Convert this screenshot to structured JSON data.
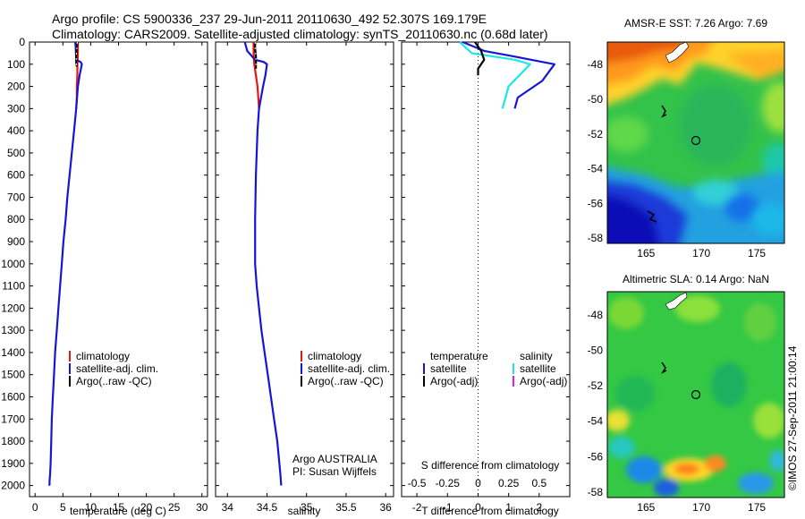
{
  "header": {
    "line1": "Argo profile: CS 5900336_237 29-Jun-2011 20110630_492 52.307S 169.179E",
    "line2": "Climatology: CARS2009. Satellite-adjusted climatology: synTS_20110630.nc (0.68d later)"
  },
  "colors": {
    "climatology": "#e8160f",
    "satellite": "#1515d8",
    "argo": "#000000",
    "satellite_salinity_diff": "#1fe6e6",
    "argo_salinity_diff": "#e020e0"
  },
  "chart_data": [
    {
      "type": "line",
      "panel": "temperature",
      "xlabel": "temperature (deg C)",
      "xlim": [
        -1,
        31
      ],
      "xticks": [
        0,
        5,
        10,
        15,
        20,
        25,
        30
      ],
      "ylim": [
        2050,
        0
      ],
      "yticks": [
        0,
        100,
        200,
        300,
        400,
        500,
        600,
        700,
        800,
        900,
        1000,
        1100,
        1200,
        1300,
        1400,
        1500,
        1600,
        1700,
        1800,
        1900,
        2000
      ],
      "legend": [
        "climatology",
        "satellite-adj. clim.",
        "Argo(..raw -QC)"
      ],
      "series": [
        {
          "name": "climatology",
          "color": "#e8160f",
          "x": [
            7.7,
            7.7,
            7.6,
            7.6,
            7.5,
            7.5,
            7.4
          ],
          "y": [
            0,
            50,
            100,
            150,
            200,
            250,
            300
          ]
        },
        {
          "name": "satellite-adj. clim.",
          "color": "#1515d8",
          "x": [
            7.2,
            7.3,
            7.4,
            8.2,
            8.4,
            8.0,
            7.7,
            7.4,
            7.0,
            6.6,
            6.2,
            5.8,
            5.5,
            5.1,
            4.8,
            4.5,
            4.2,
            3.9,
            3.6,
            3.4,
            3.2,
            3.0,
            2.9,
            2.8,
            2.7,
            2.6,
            2.6,
            2.5
          ],
          "y": [
            0,
            20,
            80,
            90,
            100,
            150,
            200,
            300,
            400,
            500,
            600,
            700,
            800,
            900,
            1000,
            1100,
            1200,
            1300,
            1400,
            1500,
            1600,
            1700,
            1800,
            1900,
            1950,
            1980,
            1995,
            2000
          ]
        },
        {
          "name": "Argo(..raw -QC)",
          "color": "#000000",
          "x": [
            7.6,
            7.5,
            7.4,
            7.4,
            7.5
          ],
          "y": [
            0,
            30,
            60,
            90,
            110
          ]
        }
      ]
    },
    {
      "type": "line",
      "panel": "salinity",
      "xlabel": "salinity",
      "xlim": [
        33.85,
        36.1
      ],
      "xticks": [
        34,
        34.5,
        35,
        35.5,
        36
      ],
      "ylim": [
        2050,
        0
      ],
      "legend": [
        "climatology",
        "satellite-adj. clim.",
        "Argo(..raw -QC)"
      ],
      "annotation": [
        "Argo AUSTRALIA",
        "PI: Susan Wijffels"
      ],
      "series": [
        {
          "name": "climatology",
          "color": "#e8160f",
          "x": [
            34.33,
            34.33,
            34.34,
            34.36,
            34.38,
            34.4
          ],
          "y": [
            0,
            50,
            100,
            150,
            200,
            300
          ]
        },
        {
          "name": "satellite-adj. clim.",
          "color": "#1515d8",
          "x": [
            34.22,
            34.25,
            34.35,
            34.46,
            34.5,
            34.48,
            34.45,
            34.4,
            34.38,
            34.36,
            34.35,
            34.35,
            34.37,
            34.4,
            34.43,
            34.47,
            34.51,
            34.55,
            34.59,
            34.63,
            34.67,
            34.68
          ],
          "y": [
            0,
            40,
            80,
            90,
            100,
            150,
            200,
            300,
            400,
            600,
            800,
            1000,
            1100,
            1200,
            1300,
            1400,
            1500,
            1600,
            1700,
            1800,
            1950,
            2000
          ]
        },
        {
          "name": "Argo(..raw -QC)",
          "color": "#000000",
          "x": [
            34.35,
            34.35,
            34.36,
            34.36,
            34.36
          ],
          "y": [
            0,
            30,
            60,
            90,
            120
          ]
        }
      ]
    },
    {
      "type": "line",
      "panel": "difference",
      "xlabel": "T difference from climatology",
      "xlabel2": "S difference from climatology",
      "xlim": [
        -2.5,
        3
      ],
      "xticks": [
        -2,
        -1,
        0,
        1,
        2
      ],
      "x2ticks": [
        -0.5,
        -0.25,
        0,
        0.25,
        0.5
      ],
      "ylim": [
        2050,
        0
      ],
      "legend_temperature_title": "temperature",
      "legend_salinity_title": "salinity",
      "legend_temperature": [
        "satellite",
        "Argo(-adj)"
      ],
      "legend_salinity": [
        "satellite",
        "Argo(-adj)"
      ],
      "series": [
        {
          "name": "temperature satellite",
          "color": "#1515d8",
          "x": [
            -0.5,
            0.2,
            1.0,
            2.5,
            2.1,
            1.3,
            1.2
          ],
          "y": [
            0,
            40,
            60,
            100,
            175,
            250,
            300
          ]
        },
        {
          "name": "salinity satellite",
          "color": "#1fe6e6",
          "x": [
            -0.6,
            -0.2,
            1.2,
            1.7,
            1.0,
            0.8
          ],
          "y": [
            0,
            50,
            80,
            100,
            200,
            300
          ]
        },
        {
          "name": "temperature Argo(-adj)",
          "color": "#000000",
          "x": [
            -0.1,
            0.1,
            0.2,
            0.0,
            0.0
          ],
          "y": [
            0,
            40,
            80,
            120,
            150
          ]
        }
      ]
    },
    {
      "type": "heatmap",
      "panel": "map-sst",
      "title": "AMSR-E SST: 7.26 Argo: 7.69",
      "xlim": [
        161.5,
        177.5
      ],
      "xticks": [
        165,
        170,
        175
      ],
      "ylim": [
        -58.3,
        -46.7
      ],
      "yticks": [
        -48,
        -50,
        -52,
        -54,
        -56,
        -58
      ],
      "argo_position": {
        "lon": 169.18,
        "lat": -52.31
      }
    },
    {
      "type": "heatmap",
      "panel": "map-sla",
      "title": "Altimetric SLA: 0.14 Argo: NaN",
      "xlim": [
        161.5,
        177.5
      ],
      "xticks": [
        165,
        170,
        175
      ],
      "ylim": [
        -58.3,
        -46.7
      ],
      "yticks": [
        -48,
        -50,
        -52,
        -54,
        -56,
        -58
      ],
      "argo_position": {
        "lon": 169.18,
        "lat": -52.31
      }
    }
  ],
  "credit": "©IMOS 27-Sep-2011 21:00:14"
}
